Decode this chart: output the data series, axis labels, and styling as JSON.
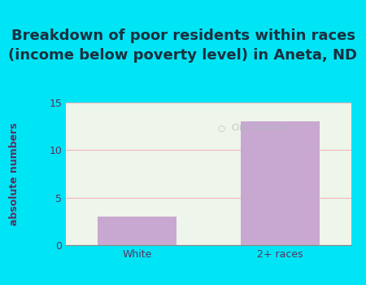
{
  "title": "Breakdown of poor residents within races\n(income below poverty level) in Aneta, ND",
  "categories": [
    "White",
    "2+ races"
  ],
  "values": [
    3,
    13
  ],
  "bar_color": "#c8a8d0",
  "ylabel": "absolute numbers",
  "ylim": [
    0,
    15
  ],
  "yticks": [
    0,
    5,
    10,
    15
  ],
  "bg_outer": "#00e5f5",
  "bg_plot": "#eef5ea",
  "grid_color": "#f0b8c0",
  "title_fontsize": 13,
  "axis_label_fontsize": 9,
  "tick_fontsize": 9,
  "title_color": "#1a3040",
  "label_color": "#5a3060",
  "tick_color": "#5a3060",
  "watermark_text": "City-Data.com"
}
